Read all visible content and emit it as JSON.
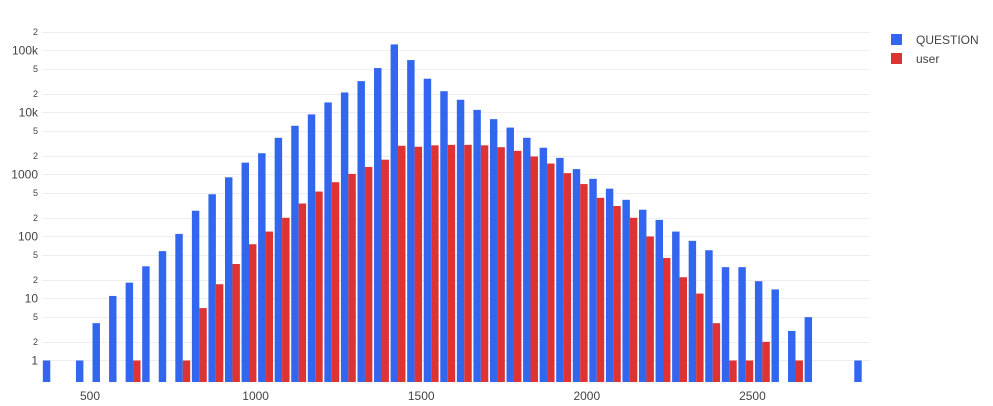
{
  "chart_data": {
    "type": "bar",
    "x": [
      380,
      430,
      480,
      530,
      580,
      630,
      680,
      730,
      780,
      830,
      880,
      930,
      980,
      1030,
      1080,
      1130,
      1180,
      1230,
      1280,
      1330,
      1380,
      1430,
      1480,
      1530,
      1580,
      1630,
      1680,
      1730,
      1780,
      1830,
      1880,
      1930,
      1980,
      2030,
      2080,
      2130,
      2180,
      2230,
      2280,
      2330,
      2380,
      2430,
      2480,
      2530,
      2580,
      2630,
      2680,
      2730,
      2780,
      2830
    ],
    "series": [
      {
        "name": "QUESTION",
        "color": "#3366ee",
        "values": [
          1,
          0,
          1,
          4,
          11,
          18,
          33,
          58,
          110,
          260,
          480,
          900,
          1550,
          2200,
          3900,
          6100,
          9300,
          14500,
          21000,
          32000,
          52000,
          125000,
          70000,
          35000,
          22000,
          16000,
          11000,
          7800,
          5700,
          3900,
          2700,
          1850,
          1220,
          850,
          590,
          390,
          270,
          185,
          120,
          85,
          60,
          32,
          32,
          19,
          14,
          3,
          5,
          0,
          0,
          1
        ]
      },
      {
        "name": "user",
        "color": "#dd3333",
        "values": [
          0,
          0,
          0,
          0,
          0,
          1,
          0,
          0,
          1,
          7,
          17,
          36,
          75,
          120,
          200,
          340,
          530,
          750,
          1020,
          1320,
          1730,
          2900,
          2800,
          2950,
          3000,
          3000,
          2950,
          2750,
          2400,
          1950,
          1500,
          1050,
          700,
          420,
          310,
          200,
          100,
          45,
          22,
          12,
          4,
          1,
          1,
          2,
          0,
          1,
          0,
          0,
          0,
          0
        ]
      }
    ],
    "xticks": [
      500,
      1000,
      1500,
      2000,
      2500
    ],
    "ymajor": [
      {
        "value": 1,
        "label": "1"
      },
      {
        "value": 10,
        "label": "10"
      },
      {
        "value": 100,
        "label": "100"
      },
      {
        "value": 1000,
        "label": "1000"
      },
      {
        "value": 10000,
        "label": "10k"
      },
      {
        "value": 100000,
        "label": "100k"
      }
    ],
    "yminor": [
      {
        "value": 2,
        "label": "2"
      },
      {
        "value": 5,
        "label": "5"
      },
      {
        "value": 20,
        "label": "2"
      },
      {
        "value": 50,
        "label": "5"
      },
      {
        "value": 200,
        "label": "2"
      },
      {
        "value": 500,
        "label": "5"
      },
      {
        "value": 2000,
        "label": "2"
      },
      {
        "value": 5000,
        "label": "5"
      },
      {
        "value": 20000,
        "label": "2"
      },
      {
        "value": 50000,
        "label": "5"
      },
      {
        "value": 200000,
        "label": "2"
      }
    ],
    "xlim": [
      355,
      2855
    ],
    "ylim": [
      0.45,
      230000
    ],
    "yscale": "log",
    "grid": true,
    "legend": "top-right",
    "title": "",
    "xlabel": "",
    "ylabel": ""
  }
}
